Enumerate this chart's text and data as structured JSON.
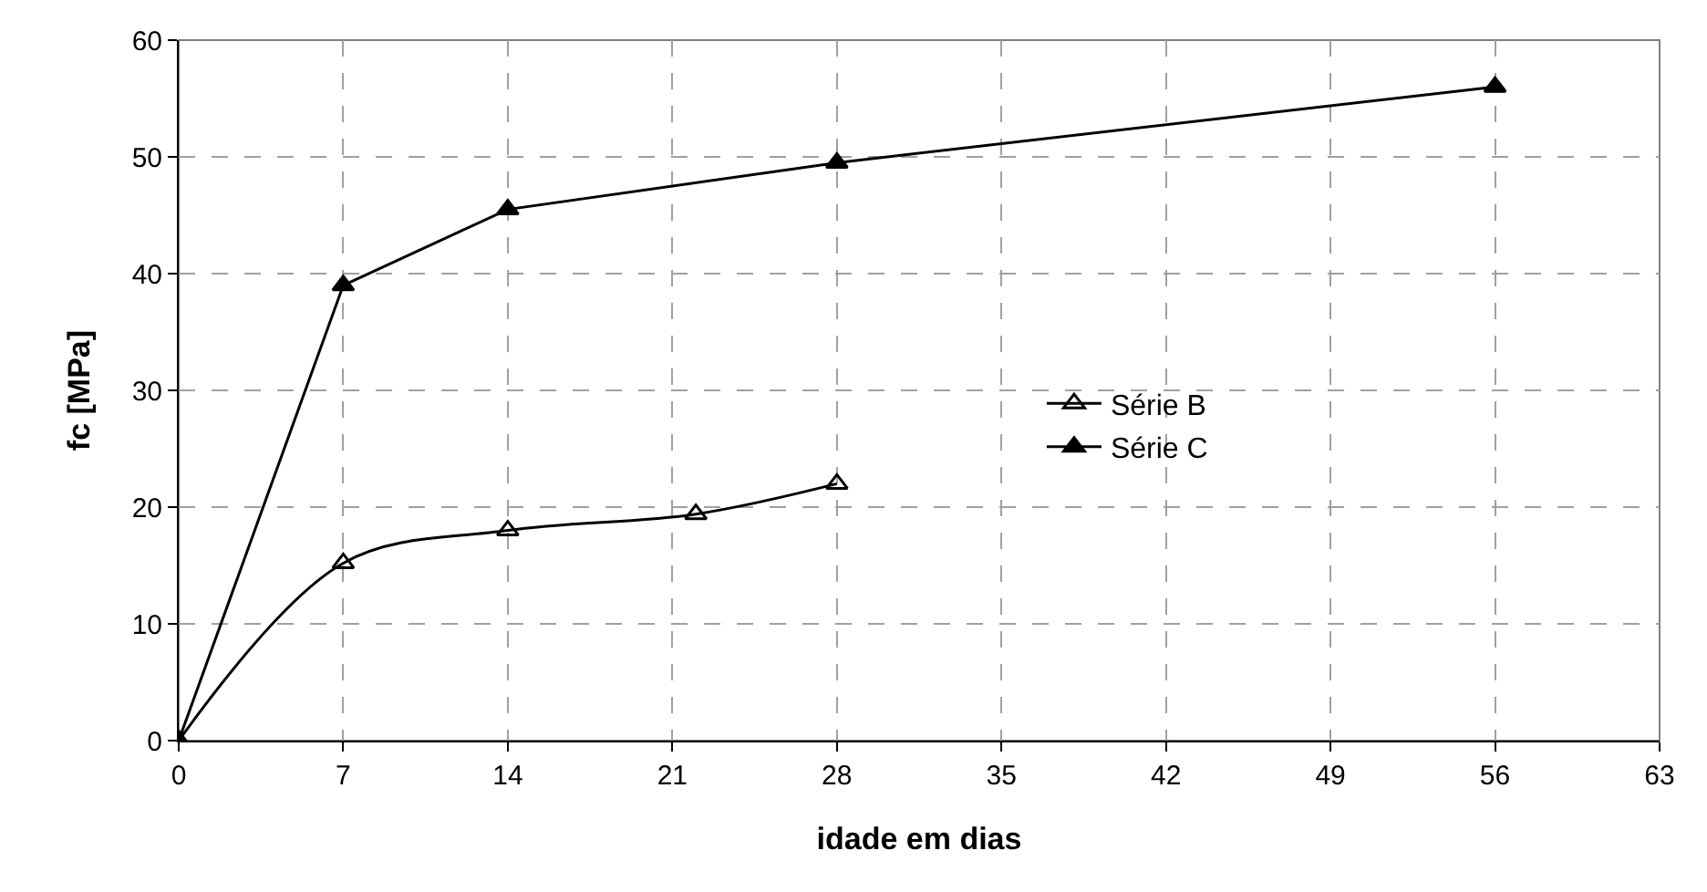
{
  "chart_data": {
    "type": "line",
    "xlabel": "idade em dias",
    "ylabel": "fc [MPa]",
    "xlim": [
      0,
      63
    ],
    "xticks": [
      0,
      7,
      14,
      21,
      28,
      35,
      42,
      49,
      56,
      63
    ],
    "ylim": [
      0,
      60
    ],
    "yticks": [
      0,
      10,
      20,
      30,
      40,
      50,
      60
    ],
    "grid": true,
    "legend": "right",
    "marker": "triangle",
    "line_style": "solid",
    "series": [
      {
        "name": "Série B",
        "color": "#000000",
        "x": [
          0,
          7,
          14,
          22,
          28
        ],
        "values": [
          0,
          15.2,
          18,
          19.4,
          22
        ]
      },
      {
        "name": "Série C",
        "color": "#000000",
        "x": [
          0,
          7,
          14,
          28,
          56
        ],
        "values": [
          0,
          39,
          45.5,
          49.5,
          56
        ]
      }
    ]
  }
}
